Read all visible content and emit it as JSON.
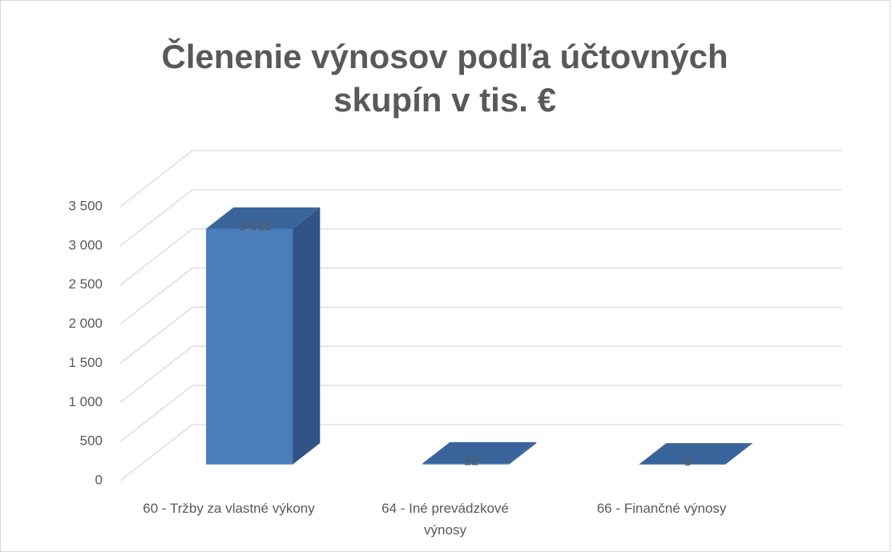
{
  "chart_data": {
    "type": "bar3d",
    "title": "Členenie výnosov podľa účtovných skupín v tis. €",
    "categories": [
      "60 - Tržby za vlastné výkony",
      "64 - Iné prevádzkové výnosy",
      "66 - Finančné výnosy"
    ],
    "values": [
      3011,
      12,
      0
    ],
    "value_labels": [
      "3 011",
      "12",
      "0"
    ],
    "color": "#4a7ebb",
    "ylim": [
      0,
      3500
    ],
    "yticks": [
      0,
      500,
      {
        "value": 1000,
        "label": "1 000"
      },
      {
        "value": 1500,
        "label": "1 500"
      },
      {
        "value": 2000,
        "label": "2 000"
      },
      {
        "value": 2500,
        "label": "2 500"
      },
      {
        "value": 3000,
        "label": "3 000"
      },
      {
        "value": 3500,
        "label": "3 500"
      }
    ],
    "grid": true
  }
}
